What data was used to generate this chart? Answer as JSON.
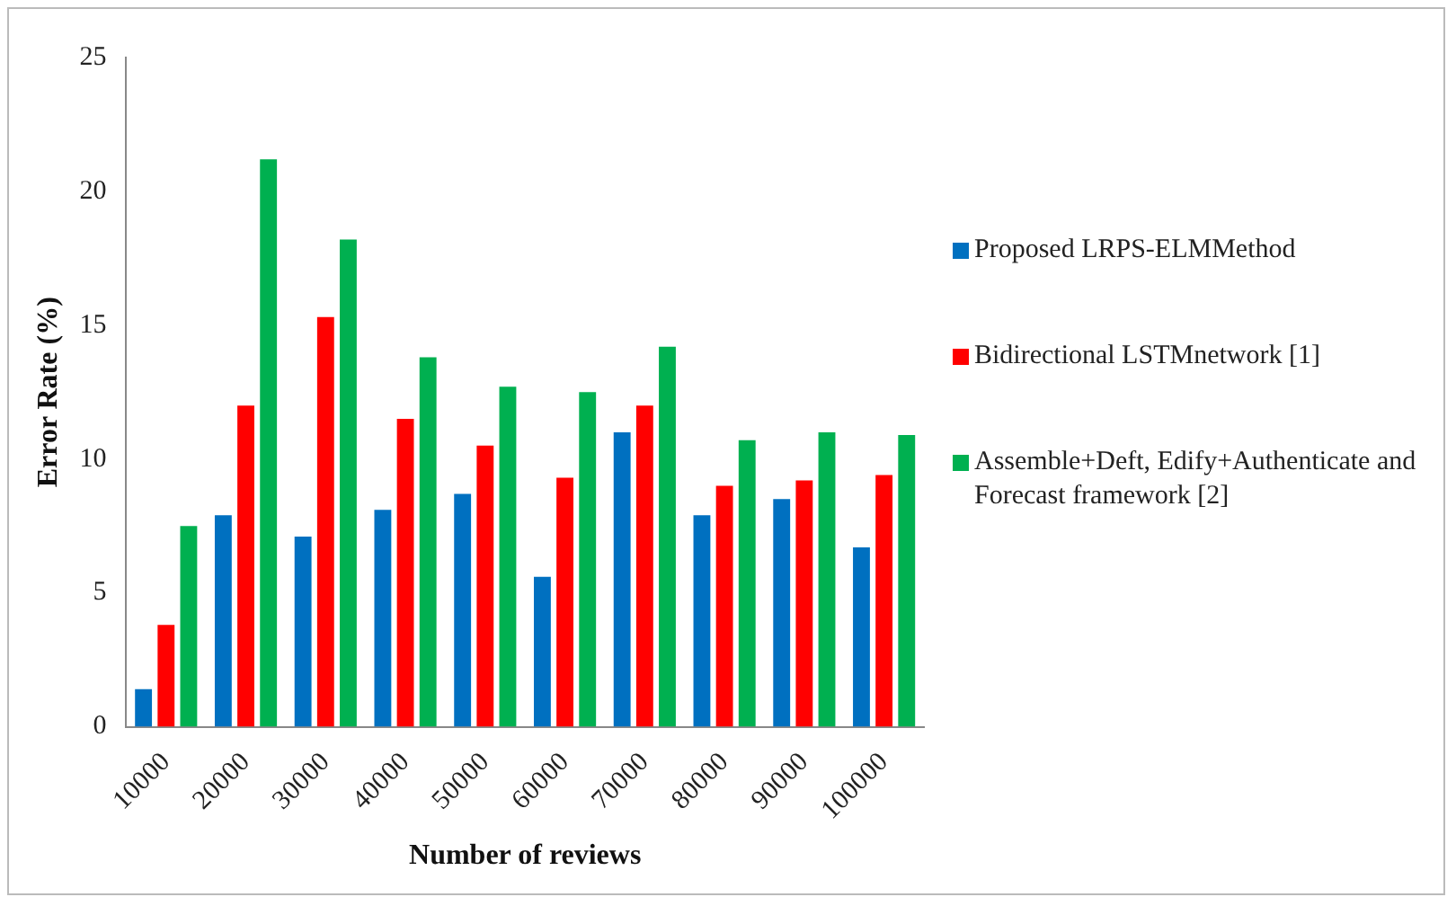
{
  "chart_data": {
    "type": "bar",
    "xlabel": "Number of reviews",
    "ylabel": "Error Rate (%)",
    "categories": [
      "10000",
      "20000",
      "30000",
      "40000",
      "50000",
      "60000",
      "70000",
      "80000",
      "90000",
      "100000"
    ],
    "series": [
      {
        "name": "Proposed LRPS-ELMMethod",
        "color": "#0070c0",
        "values": [
          1.4,
          7.9,
          7.1,
          8.1,
          8.7,
          5.6,
          11.0,
          7.9,
          8.5,
          6.7
        ]
      },
      {
        "name": "Bidirectional LSTMnetwork [1]",
        "color": "#ff0000",
        "values": [
          3.8,
          12.0,
          15.3,
          11.5,
          10.5,
          9.3,
          12.0,
          9.0,
          9.2,
          9.4
        ]
      },
      {
        "name": "Assemble+Deft, Edify+Authenticate and Forecast framework [2]",
        "color": "#00b050",
        "values": [
          7.5,
          21.2,
          18.2,
          13.8,
          12.7,
          12.5,
          14.2,
          10.7,
          11.0,
          10.9
        ]
      }
    ],
    "ylim": [
      0,
      25
    ],
    "yticks": [
      0,
      5,
      10,
      15,
      20,
      25
    ],
    "grid": false,
    "legend": "right"
  }
}
